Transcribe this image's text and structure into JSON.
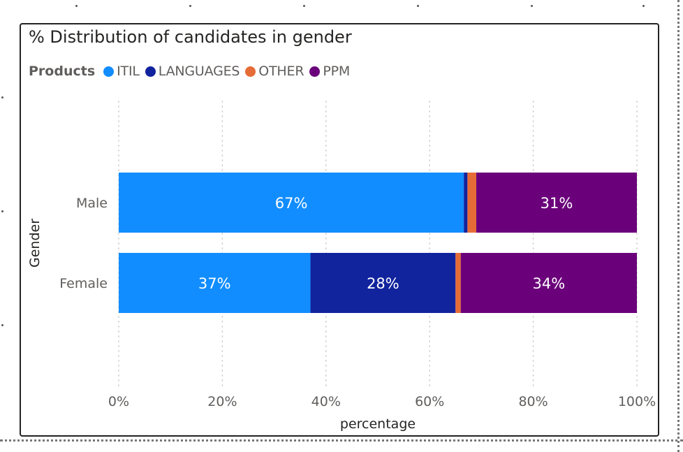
{
  "chart_data": {
    "type": "bar",
    "orientation": "horizontal",
    "stacked": "100%",
    "title": "% Distribution of candidates in gender",
    "xlabel": "percentage",
    "ylabel": "Gender",
    "xlim": [
      0,
      100
    ],
    "x_ticks": [
      "0%",
      "20%",
      "40%",
      "60%",
      "80%",
      "100%"
    ],
    "grid": "vertical-dotted",
    "legend": {
      "title": "Products",
      "position": "top-left"
    },
    "categories": [
      "Male",
      "Female"
    ],
    "series": [
      {
        "name": "ITIL",
        "color": "#118DFF",
        "values": [
          66.6,
          37.0
        ],
        "labels": [
          "67%",
          "37%"
        ]
      },
      {
        "name": "LANGUAGES",
        "color": "#12239E",
        "values": [
          0.7,
          28.0
        ],
        "labels": [
          "",
          "28%"
        ]
      },
      {
        "name": "OTHER",
        "color": "#E66C37",
        "values": [
          1.7,
          1.0
        ],
        "labels": [
          "",
          ""
        ]
      },
      {
        "name": "PPM",
        "color": "#6B007B",
        "values": [
          31.0,
          34.0
        ],
        "labels": [
          "31%",
          "34%"
        ]
      }
    ]
  }
}
